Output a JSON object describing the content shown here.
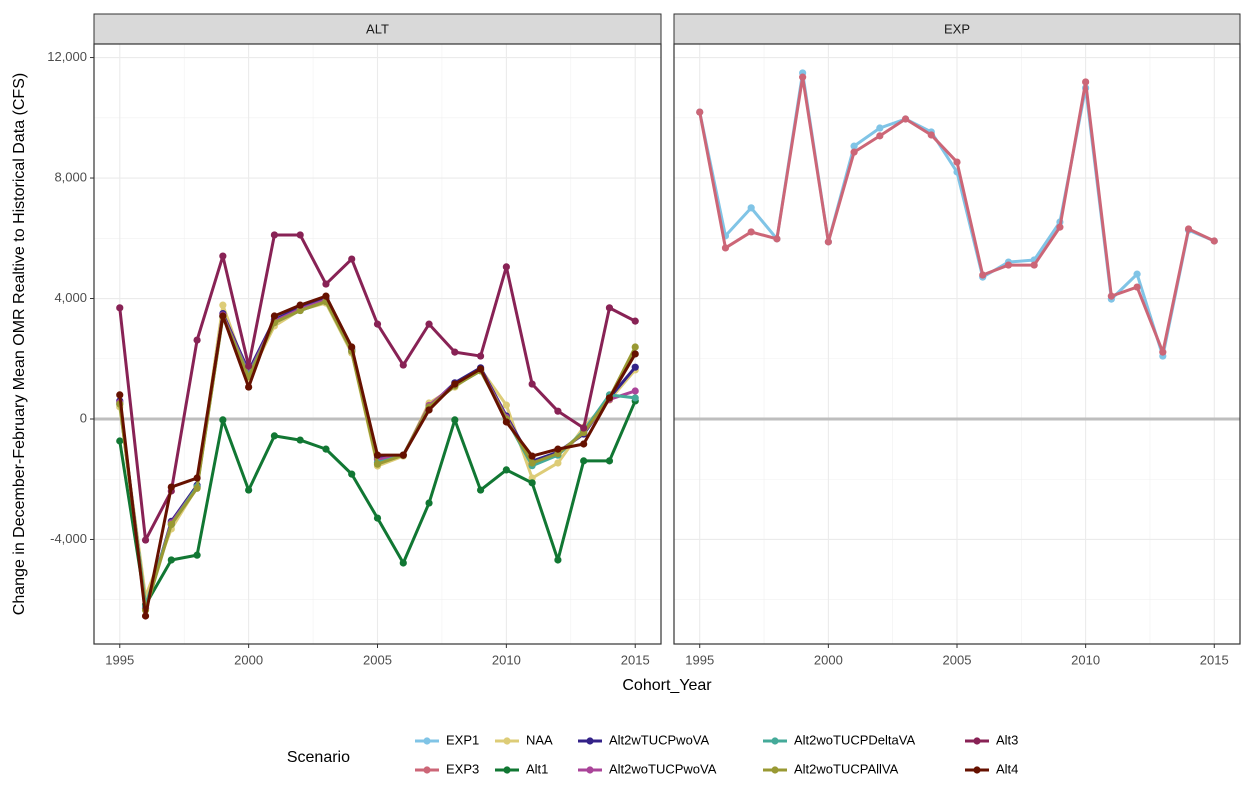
{
  "chart_data": {
    "type": "line",
    "x_label": "Cohort_Year",
    "y_label": "Change in December-February Mean OMR Realtive to Historical Data (CFS)",
    "legend_title": "Scenario",
    "legend_position": "bottom",
    "grid": true,
    "hline": 0,
    "facets": [
      "ALT",
      "EXP"
    ],
    "x": [
      1995,
      1996,
      1997,
      1998,
      1999,
      2000,
      2001,
      2002,
      2003,
      2004,
      2005,
      2006,
      2007,
      2008,
      2009,
      2010,
      2011,
      2012,
      2013,
      2014,
      2015
    ],
    "xlim": [
      1994,
      2016
    ],
    "xticks": [
      1995,
      2000,
      2005,
      2010,
      2015
    ],
    "ylim": [
      -7470,
      12450
    ],
    "yticks": [
      {
        "value": -4000,
        "label": "-4,000"
      },
      0,
      {
        "value": 4000,
        "label": "4,000"
      },
      {
        "value": 8000,
        "label": "8,000"
      },
      {
        "value": 12000,
        "label": "12,000"
      }
    ],
    "series": [
      {
        "name": "EXP1",
        "color": "#80c4e6",
        "panel": 1,
        "values": [
          10190,
          6080,
          7010,
          5980,
          11490,
          5880,
          9060,
          9660,
          9960,
          9530,
          8200,
          4710,
          5210,
          5280,
          6540,
          10990,
          3980,
          4810,
          2090,
          6270,
          5910
        ]
      },
      {
        "name": "EXP3",
        "color": "#cc6677",
        "panel": 1,
        "values": [
          10190,
          5680,
          6210,
          5980,
          11350,
          5880,
          8860,
          9400,
          9960,
          9430,
          8530,
          4780,
          5110,
          5110,
          6370,
          11190,
          4080,
          4380,
          2220,
          6310,
          5910
        ]
      },
      {
        "name": "NAA",
        "color": "#ddcc77",
        "panel": 0,
        "values": [
          400,
          -5900,
          -3650,
          -2260,
          3780,
          1360,
          3090,
          3620,
          3850,
          2190,
          -1560,
          -1230,
          530,
          1060,
          1660,
          460,
          -1960,
          -1460,
          -270,
          630,
          1630
        ]
      },
      {
        "name": "Alt1",
        "color": "#117733",
        "panel": 0,
        "values": [
          -730,
          -6170,
          -4680,
          -4520,
          -30,
          -2360,
          -560,
          -700,
          -1000,
          -1830,
          -3290,
          -4780,
          -2790,
          -30,
          -2360,
          -1690,
          -2120,
          -4680,
          -1390,
          -1390,
          600
        ]
      },
      {
        "name": "Alt2wTUCPwoVA",
        "color": "#332288",
        "panel": 0,
        "values": [
          600,
          -6300,
          -3400,
          -2200,
          3500,
          1590,
          3300,
          3700,
          4000,
          2300,
          -1300,
          -1200,
          400,
          1200,
          1700,
          100,
          -1400,
          -1100,
          -500,
          700,
          1720
        ]
      },
      {
        "name": "Alt2woTUCPwoVA",
        "color": "#aa4499",
        "panel": 0,
        "values": [
          550,
          -6250,
          -3450,
          -2250,
          3450,
          1500,
          3250,
          3650,
          3950,
          2250,
          -1350,
          -1200,
          450,
          1150,
          1650,
          50,
          -1500,
          -1150,
          -450,
          650,
          930
        ]
      },
      {
        "name": "Alt2woTUCPDeltaVA",
        "color": "#44aa99",
        "panel": 0,
        "values": [
          500,
          -6200,
          -3500,
          -2250,
          3400,
          1450,
          3200,
          3600,
          3900,
          2250,
          -1450,
          -1200,
          400,
          1100,
          1600,
          0,
          -1550,
          -1200,
          -400,
          800,
          700
        ]
      },
      {
        "name": "Alt2woTUCPAllVA",
        "color": "#999933",
        "panel": 0,
        "values": [
          500,
          -6350,
          -3500,
          -2300,
          3400,
          1400,
          3200,
          3600,
          3900,
          2250,
          -1500,
          -1200,
          400,
          1100,
          1600,
          0,
          -1460,
          -1150,
          -450,
          700,
          2390
        ]
      },
      {
        "name": "Alt3",
        "color": "#882255",
        "panel": 0,
        "values": [
          3690,
          -4020,
          -2390,
          2620,
          5410,
          1760,
          6110,
          6110,
          4480,
          5310,
          3150,
          1790,
          3150,
          2220,
          2090,
          5050,
          1160,
          260,
          -300,
          3690,
          3250
        ]
      },
      {
        "name": "Alt4",
        "color": "#661100",
        "panel": 0,
        "values": [
          800,
          -6540,
          -2260,
          -1960,
          3420,
          1060,
          3420,
          3780,
          4080,
          2390,
          -1200,
          -1200,
          300,
          1160,
          1660,
          -100,
          -1230,
          -1000,
          -830,
          700,
          2160
        ]
      }
    ]
  }
}
